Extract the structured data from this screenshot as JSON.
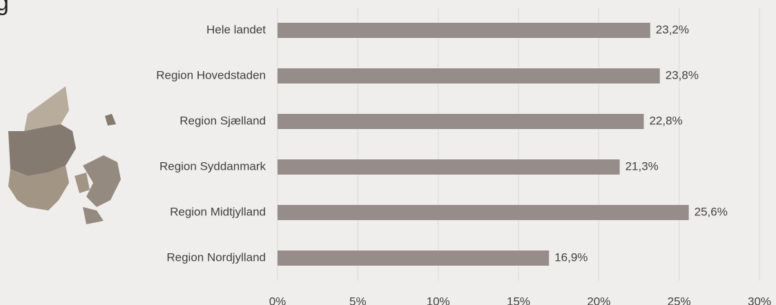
{
  "chart_data": {
    "type": "bar",
    "orientation": "horizontal",
    "title": "g",
    "categories": [
      "Hele landet",
      "Region Hovedstaden",
      "Region Sjælland",
      "Region Syddanmark",
      "Region Midtjylland",
      "Region Nordjylland"
    ],
    "values": [
      23.2,
      23.8,
      22.8,
      21.3,
      25.6,
      16.9
    ],
    "value_labels": [
      "23,2%",
      "23,8%",
      "22,8%",
      "21,3%",
      "25,6%",
      "16,9%"
    ],
    "color": "#968c89",
    "xlim": [
      0,
      30
    ],
    "xticks": [
      {
        "value": 0,
        "label": "0%"
      },
      {
        "value": 5,
        "label": "5%"
      },
      {
        "value": 10,
        "label": "10%"
      },
      {
        "value": 15,
        "label": "15%"
      },
      {
        "value": 20,
        "label": "20%"
      },
      {
        "value": 25,
        "label": "25%"
      },
      {
        "value": 30,
        "label": "30%"
      }
    ],
    "grid": true
  }
}
